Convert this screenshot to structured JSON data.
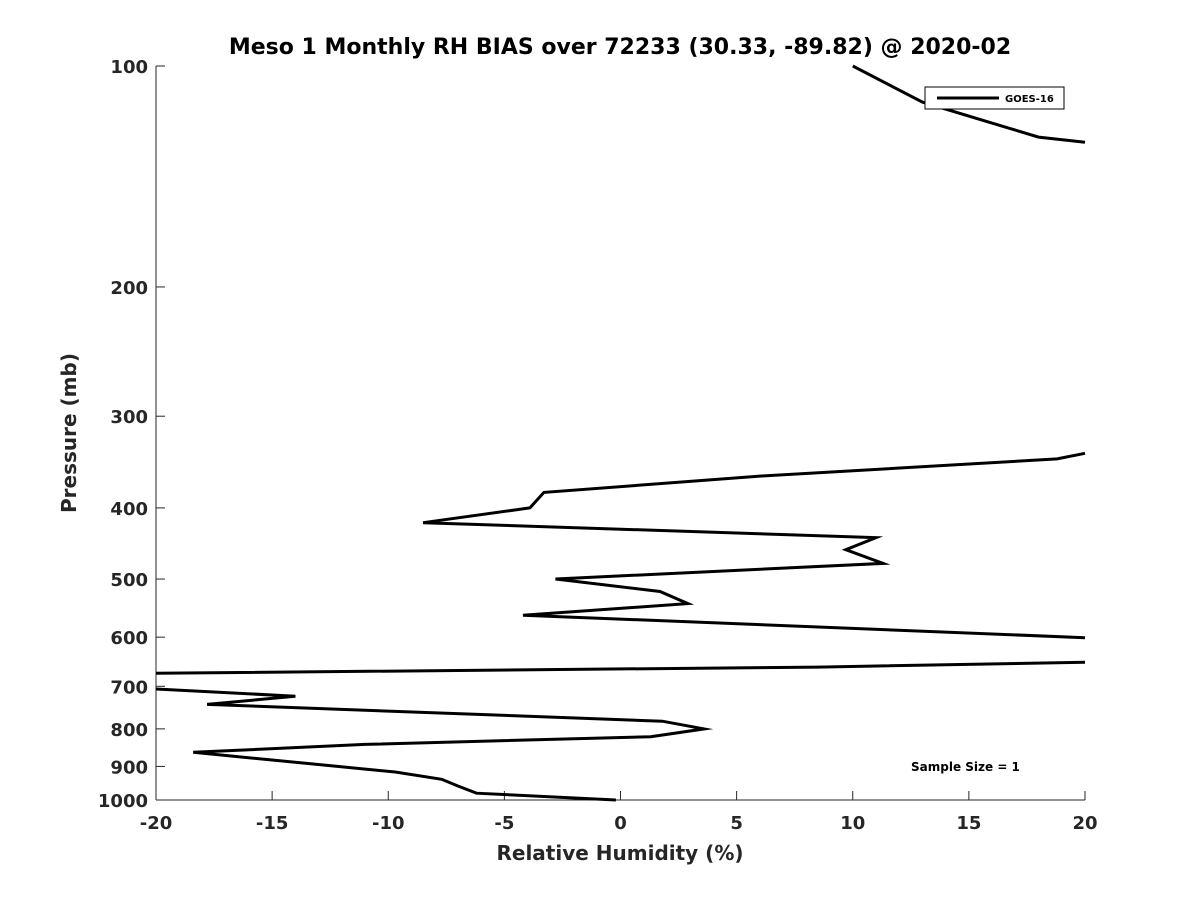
{
  "chart_data": {
    "type": "line",
    "title": "Meso 1 Monthly RH BIAS over 72233 (30.33, -89.82) @ 2020-02",
    "xlabel": "Relative Humidity (%)",
    "ylabel": "Pressure (mb)",
    "xlim": [
      -20,
      20
    ],
    "ylim": [
      100,
      1000
    ],
    "y_scale": "log",
    "y_reversed": true,
    "grid": false,
    "legend_position": "top-right",
    "annotation": "Sample Size = 1",
    "x_ticks": [
      "-20",
      "-15",
      "-10",
      "-5",
      "0",
      "5",
      "10",
      "15",
      "20"
    ],
    "y_ticks": [
      "100",
      "200",
      "300",
      "400",
      "500",
      "600",
      "700",
      "800",
      "900",
      "1000"
    ],
    "series": [
      {
        "name": "GOES-16",
        "color": "#000000",
        "segments": [
          [
            {
              "x": 10.0,
              "y": 100
            },
            {
              "x": 13.0,
              "y": 112
            },
            {
              "x": 18.0,
              "y": 125
            },
            {
              "x": 20.0,
              "y": 127
            }
          ],
          [
            {
              "x": 20.0,
              "y": 337
            },
            {
              "x": 18.8,
              "y": 343
            },
            {
              "x": 6.0,
              "y": 362
            },
            {
              "x": -3.3,
              "y": 381
            },
            {
              "x": -3.9,
              "y": 400
            },
            {
              "x": -8.5,
              "y": 419
            },
            {
              "x": 11.0,
              "y": 439
            },
            {
              "x": 9.7,
              "y": 456
            },
            {
              "x": 11.3,
              "y": 476
            },
            {
              "x": -2.8,
              "y": 500
            },
            {
              "x": 1.7,
              "y": 520
            },
            {
              "x": 2.9,
              "y": 540
            },
            {
              "x": -4.2,
              "y": 560
            },
            {
              "x": 20.0,
              "y": 601
            }
          ],
          [
            {
              "x": 20.0,
              "y": 649
            },
            {
              "x": 8.5,
              "y": 659
            },
            {
              "x": -20.0,
              "y": 672
            }
          ],
          [
            {
              "x": -20.0,
              "y": 706
            },
            {
              "x": -14.0,
              "y": 722
            },
            {
              "x": -17.8,
              "y": 741
            },
            {
              "x": 1.8,
              "y": 781
            },
            {
              "x": 3.6,
              "y": 800
            },
            {
              "x": 1.3,
              "y": 820
            },
            {
              "x": -11.0,
              "y": 840
            },
            {
              "x": -18.4,
              "y": 861
            },
            {
              "x": -9.7,
              "y": 916
            },
            {
              "x": -7.7,
              "y": 937
            },
            {
              "x": -7.0,
              "y": 957
            },
            {
              "x": -6.2,
              "y": 979
            },
            {
              "x": -0.2,
              "y": 1000
            }
          ]
        ]
      }
    ]
  }
}
